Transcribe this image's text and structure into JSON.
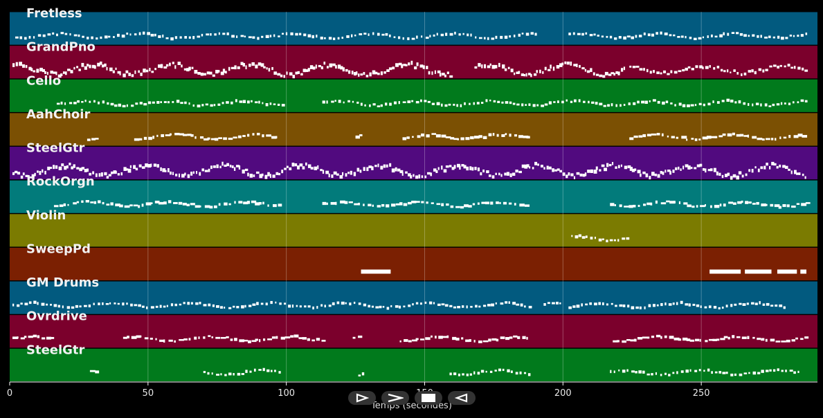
{
  "chart_data": {
    "type": "piano-roll",
    "xlabel": "Temps (secondes)",
    "xlim": [
      0,
      292
    ],
    "xticks": [
      0,
      50,
      100,
      150,
      200,
      250
    ],
    "grid": true,
    "tracks": [
      {
        "name": "Fretless",
        "color": "#025a7f",
        "segments": [
          [
            2,
            190,
            "thin"
          ],
          [
            202,
            288,
            "thin"
          ]
        ]
      },
      {
        "name": "GrandPno",
        "color": "#7b002c",
        "segments": [
          [
            1,
            160,
            "dense"
          ],
          [
            168,
            222,
            "dense"
          ],
          [
            224,
            288,
            "mid"
          ]
        ]
      },
      {
        "name": "Cello",
        "color": "#017a1c",
        "segments": [
          [
            17,
            99,
            "thin"
          ],
          [
            113,
            288,
            "thin"
          ]
        ]
      },
      {
        "name": "AahChoir",
        "color": "#7b5003",
        "segments": [
          [
            28,
            32,
            "sparse"
          ],
          [
            45,
            98,
            "sparse"
          ],
          [
            125,
            127,
            "sparse"
          ],
          [
            142,
            155,
            "sparse"
          ],
          [
            156,
            187,
            "sparse"
          ],
          [
            224,
            288,
            "sparse"
          ]
        ]
      },
      {
        "name": "SteelGtr",
        "color": "#510a7f",
        "segments": [
          [
            1,
            288,
            "dense"
          ]
        ]
      },
      {
        "name": "RockOrgn",
        "color": "#027b7b",
        "segments": [
          [
            16,
            98,
            "sparse"
          ],
          [
            113,
            187,
            "sparse"
          ],
          [
            217,
            288,
            "sparse"
          ]
        ]
      },
      {
        "name": "Violin",
        "color": "#7b7b01",
        "segments": [
          [
            203,
            223,
            "thin"
          ]
        ]
      },
      {
        "name": "SweepPd",
        "color": "#7b2002",
        "segments": [
          [
            127,
            139,
            "block"
          ],
          [
            253,
            288,
            "block"
          ]
        ]
      },
      {
        "name": "GM Drums",
        "color": "#025a7f",
        "segments": [
          [
            1,
            188,
            "thin"
          ],
          [
            193,
            200,
            "thin"
          ],
          [
            202,
            281,
            "thin"
          ]
        ]
      },
      {
        "name": "Ovrdrive",
        "color": "#7b002c",
        "segments": [
          [
            1,
            16,
            "sparse"
          ],
          [
            41,
            113,
            "sparse"
          ],
          [
            124,
            126,
            "sparse"
          ],
          [
            141,
            188,
            "sparse"
          ],
          [
            218,
            288,
            "sparse"
          ]
        ]
      },
      {
        "name": "SteelGtr",
        "color": "#017a1c",
        "segments": [
          [
            29,
            31,
            "sparse"
          ],
          [
            70,
            98,
            "thin"
          ],
          [
            126,
            128,
            "sparse"
          ],
          [
            159,
            188,
            "thin"
          ],
          [
            217,
            285,
            "thin"
          ]
        ]
      }
    ]
  },
  "controls": [
    {
      "name": "play-button",
      "glyph": "play"
    },
    {
      "name": "forward-button",
      "glyph": "forward"
    },
    {
      "name": "stop-button",
      "glyph": "stop"
    },
    {
      "name": "back-button",
      "glyph": "back"
    }
  ]
}
